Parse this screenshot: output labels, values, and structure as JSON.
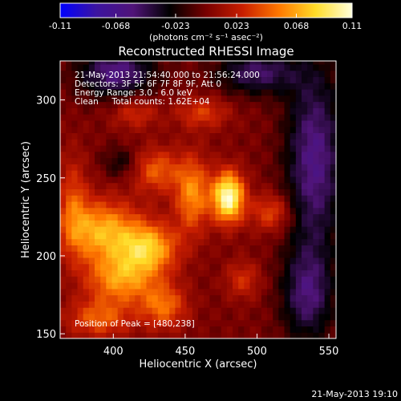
{
  "chart_data": {
    "type": "heatmap",
    "title": "Reconstructed RHESSI Image",
    "xlabel": "Heliocentric X (arcsec)",
    "ylabel": "Heliocentric Y (arcsec)",
    "xlim": [
      363,
      555
    ],
    "ylim": [
      147,
      325
    ],
    "x_ticks": [
      400,
      450,
      500,
      550
    ],
    "y_ticks": [
      150,
      200,
      250,
      300
    ],
    "colorbar": {
      "min": -0.11,
      "max": 0.11,
      "ticks": [
        "-0.11",
        "-0.068",
        "-0.023",
        "0.023",
        "0.068",
        "0.11"
      ],
      "tick_values": [
        -0.11,
        -0.068,
        -0.023,
        0.023,
        0.068,
        0.11
      ],
      "unit_label": "(photons cm⁻² s⁻¹ asec⁻²)",
      "colormap_stops": [
        "#0000ff",
        "#3c14a0",
        "#501478",
        "#000000",
        "#780000",
        "#c81e00",
        "#ff7800",
        "#ffdc28",
        "#ffffdc"
      ]
    },
    "annotations": [
      "21-May-2013 21:54:40.000 to 21:56:24.000",
      "Detectors: 3F 5F 6F 7F 8F 9F, Att 0",
      "Energy Range: 3.0 - 6.0 keV",
      "Clean     Total counts: 1.62E+04"
    ],
    "peak": {
      "label": "Position of Peak = [480,238]",
      "x": 480,
      "y": 238
    },
    "grid": false
  },
  "footer_timestamp": "21-May-2013 19:10"
}
